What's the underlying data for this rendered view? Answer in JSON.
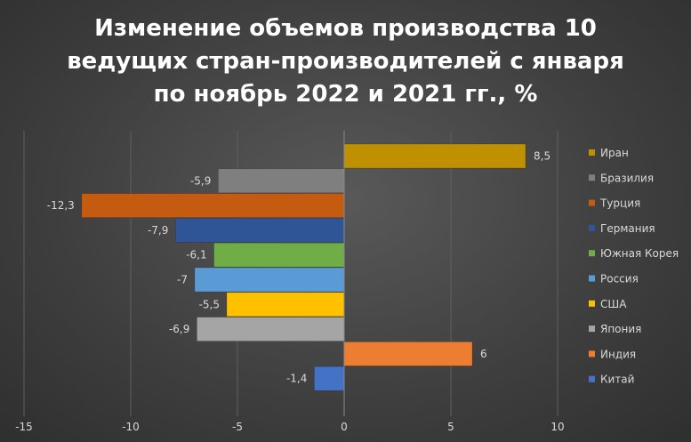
{
  "chart_data": {
    "type": "bar",
    "orientation": "horizontal",
    "title_lines": [
      "Изменение объемов производства 10",
      "ведущих стран-производителей с января",
      "по ноябрь 2022 и 2021 гг., %"
    ],
    "categories": [
      "Иран",
      "Бразилия",
      "Турция",
      "Германия",
      "Южная Корея",
      "Россия",
      "США",
      "Япония",
      "Индия",
      "Китай"
    ],
    "values": [
      8.5,
      -5.9,
      -12.3,
      -7.9,
      -6.1,
      -7,
      -5.5,
      -6.9,
      6,
      -1.4
    ],
    "value_labels": [
      "8,5",
      "-5,9",
      "-12,3",
      "-7,9",
      "-6,1",
      "-7",
      "-5,5",
      "-6,9",
      "6",
      "-1,4"
    ],
    "colors": [
      "#bf9000",
      "#7f7f7f",
      "#c55a11",
      "#2f5597",
      "#70ad47",
      "#5b9bd5",
      "#ffc000",
      "#a5a5a5",
      "#ed7d31",
      "#4472c4"
    ],
    "xlim": [
      -15,
      10
    ],
    "x_ticks": [
      -15,
      -10,
      -5,
      0,
      5,
      10
    ],
    "x_tick_labels": [
      "-15",
      "-10",
      "-5",
      "0",
      "5",
      "10"
    ],
    "grid": "vertical",
    "legend_position": "right"
  }
}
